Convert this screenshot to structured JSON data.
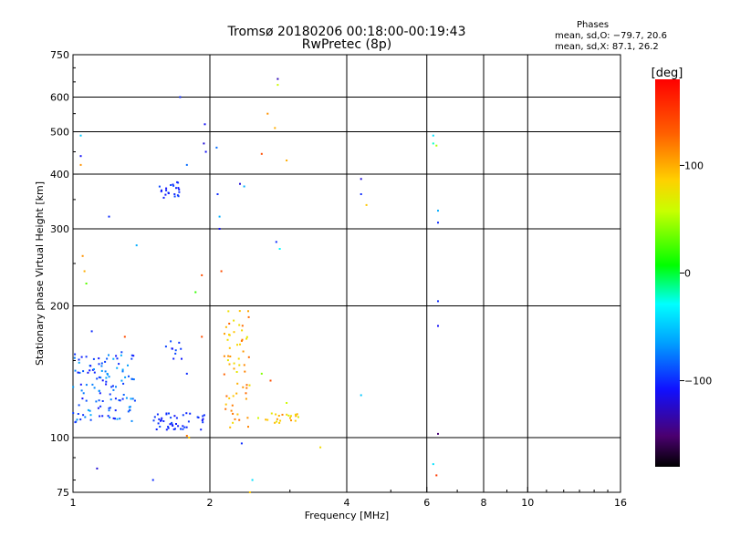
{
  "header": {
    "title_line1": "Tromsø 20180206 00:18:00-00:19:43",
    "title_line2": "RwPretec (8p)",
    "stats_header": "Phases",
    "stats_o": "mean, sd,O: −79.7, 20.6",
    "stats_x": "mean, sd,X:  87.1, 26.2"
  },
  "colorbar": {
    "label": "[deg]",
    "ticks": [
      "100",
      "0",
      "−100"
    ],
    "tick_values": [
      100,
      0,
      -100
    ],
    "range": [
      -180,
      180
    ]
  },
  "chart_data": {
    "type": "scatter",
    "xlabel": "Frequency [MHz]",
    "ylabel": "Stationary phase Virtual Height [km]",
    "x_scale": "log",
    "y_scale": "log",
    "xlim": [
      1,
      16
    ],
    "ylim": [
      75,
      750
    ],
    "x_ticks": [
      {
        "v": 1,
        "label": "1"
      },
      {
        "v": 2,
        "label": "2"
      },
      {
        "v": 4,
        "label": "4"
      },
      {
        "v": 6,
        "label": "6"
      },
      {
        "v": 8,
        "label": "8"
      },
      {
        "v": 10,
        "label": "10"
      },
      {
        "v": 16,
        "label": "16"
      }
    ],
    "y_ticks": [
      {
        "v": 75,
        "label": "75"
      },
      {
        "v": 100,
        "label": "100"
      },
      {
        "v": 200,
        "label": "200"
      },
      {
        "v": 300,
        "label": "300"
      },
      {
        "v": 400,
        "label": "400"
      },
      {
        "v": 500,
        "label": "500"
      },
      {
        "v": 600,
        "label": "600"
      },
      {
        "v": 750,
        "label": "750"
      }
    ],
    "grid_x": [
      2,
      4,
      6,
      8,
      10
    ],
    "grid_y": [
      100,
      200,
      300,
      400,
      500,
      600
    ],
    "clusters": [
      {
        "x": [
          1.0,
          1.38
        ],
        "y": [
          108,
          158
        ],
        "phase": [
          -110,
          -60
        ],
        "n": 120
      },
      {
        "x": [
          1.5,
          1.95
        ],
        "y": [
          104,
          114
        ],
        "phase": [
          -110,
          -90
        ],
        "n": 45
      },
      {
        "x": [
          1.55,
          1.72
        ],
        "y": [
          350,
          385
        ],
        "phase": [
          -110,
          -90
        ],
        "n": 22
      },
      {
        "x": [
          2.15,
          2.45
        ],
        "y": [
          105,
          200
        ],
        "phase": [
          70,
          130
        ],
        "n": 60
      },
      {
        "x": [
          2.55,
          3.15
        ],
        "y": [
          108,
          114
        ],
        "phase": [
          60,
          120
        ],
        "n": 22
      },
      {
        "x": [
          1.6,
          1.75
        ],
        "y": [
          150,
          175
        ],
        "phase": [
          -110,
          -90
        ],
        "n": 10
      }
    ],
    "points": [
      {
        "x": 1.04,
        "y": 490,
        "p": -50
      },
      {
        "x": 1.04,
        "y": 440,
        "p": -110
      },
      {
        "x": 1.04,
        "y": 420,
        "p": 110
      },
      {
        "x": 1.05,
        "y": 260,
        "p": 110
      },
      {
        "x": 1.06,
        "y": 240,
        "p": 100
      },
      {
        "x": 1.07,
        "y": 225,
        "p": 30
      },
      {
        "x": 1.2,
        "y": 320,
        "p": -100
      },
      {
        "x": 1.38,
        "y": 275,
        "p": -60
      },
      {
        "x": 1.72,
        "y": 600,
        "p": -100
      },
      {
        "x": 1.78,
        "y": 420,
        "p": -80
      },
      {
        "x": 1.95,
        "y": 520,
        "p": -110
      },
      {
        "x": 1.94,
        "y": 470,
        "p": -120
      },
      {
        "x": 1.96,
        "y": 450,
        "p": -110
      },
      {
        "x": 2.07,
        "y": 460,
        "p": -80
      },
      {
        "x": 2.08,
        "y": 360,
        "p": -100
      },
      {
        "x": 2.1,
        "y": 320,
        "p": -60
      },
      {
        "x": 2.1,
        "y": 300,
        "p": -110
      },
      {
        "x": 2.12,
        "y": 240,
        "p": 140
      },
      {
        "x": 1.92,
        "y": 235,
        "p": 140
      },
      {
        "x": 1.86,
        "y": 215,
        "p": 20
      },
      {
        "x": 2.33,
        "y": 380,
        "p": -120
      },
      {
        "x": 2.38,
        "y": 375,
        "p": -60
      },
      {
        "x": 2.6,
        "y": 445,
        "p": 140
      },
      {
        "x": 2.82,
        "y": 660,
        "p": -130
      },
      {
        "x": 2.82,
        "y": 640,
        "p": 60
      },
      {
        "x": 2.78,
        "y": 510,
        "p": 100
      },
      {
        "x": 2.68,
        "y": 550,
        "p": 110
      },
      {
        "x": 2.95,
        "y": 430,
        "p": 100
      },
      {
        "x": 2.8,
        "y": 280,
        "p": -100
      },
      {
        "x": 2.85,
        "y": 270,
        "p": -30
      },
      {
        "x": 2.95,
        "y": 120,
        "p": 60
      },
      {
        "x": 2.72,
        "y": 135,
        "p": 140
      },
      {
        "x": 2.6,
        "y": 140,
        "p": 40
      },
      {
        "x": 4.3,
        "y": 390,
        "p": -120
      },
      {
        "x": 4.3,
        "y": 360,
        "p": -100
      },
      {
        "x": 4.42,
        "y": 340,
        "p": 90
      },
      {
        "x": 4.3,
        "y": 125,
        "p": -50
      },
      {
        "x": 3.5,
        "y": 95,
        "p": 80
      },
      {
        "x": 2.35,
        "y": 97,
        "p": -100
      },
      {
        "x": 2.48,
        "y": 80,
        "p": -40
      },
      {
        "x": 2.45,
        "y": 75,
        "p": 90
      },
      {
        "x": 1.5,
        "y": 80,
        "p": -100
      },
      {
        "x": 1.13,
        "y": 85,
        "p": -120
      },
      {
        "x": 1.78,
        "y": 101,
        "p": 120
      },
      {
        "x": 1.8,
        "y": 100,
        "p": 90
      },
      {
        "x": 6.2,
        "y": 490,
        "p": -40
      },
      {
        "x": 6.2,
        "y": 470,
        "p": -20
      },
      {
        "x": 6.3,
        "y": 465,
        "p": 50
      },
      {
        "x": 6.35,
        "y": 330,
        "p": -60
      },
      {
        "x": 6.35,
        "y": 310,
        "p": -100
      },
      {
        "x": 6.35,
        "y": 205,
        "p": -100
      },
      {
        "x": 6.35,
        "y": 180,
        "p": -110
      },
      {
        "x": 6.35,
        "y": 102,
        "p": -150
      },
      {
        "x": 6.2,
        "y": 87,
        "p": -40
      },
      {
        "x": 6.3,
        "y": 82,
        "p": 150
      },
      {
        "x": 1.3,
        "y": 170,
        "p": 140
      },
      {
        "x": 1.1,
        "y": 175,
        "p": -100
      },
      {
        "x": 1.92,
        "y": 170,
        "p": 140
      },
      {
        "x": 1.78,
        "y": 140,
        "p": -100
      }
    ]
  }
}
